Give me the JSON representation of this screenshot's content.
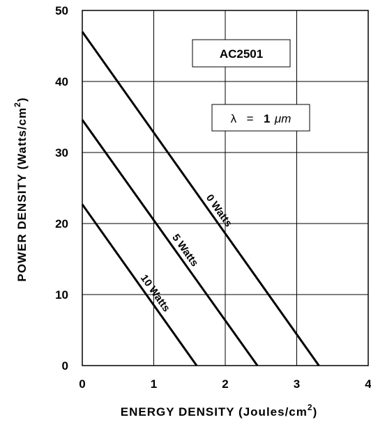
{
  "chart_data": {
    "type": "line",
    "title": "",
    "xlabel": "ENERGY DENSITY (Joules/cm",
    "xlabel_sup": "2",
    "xlabel_end": ")",
    "ylabel": "POWER DENSITY (Watts/cm",
    "ylabel_sup": "2",
    "ylabel_end": ")",
    "xlim": [
      0,
      4
    ],
    "ylim": [
      0,
      50
    ],
    "x_ticks": [
      "0",
      "1",
      "2",
      "3",
      "4"
    ],
    "y_ticks": [
      "0",
      "10",
      "20",
      "30",
      "40",
      "50"
    ],
    "grid": true,
    "series": [
      {
        "name": "0 Watts",
        "x": [
          0,
          3.31
        ],
        "y": [
          47,
          0
        ]
      },
      {
        "name": "5 Watts",
        "x": [
          0,
          2.45
        ],
        "y": [
          34.6,
          0
        ]
      },
      {
        "name": "10 Watts",
        "x": [
          0,
          1.6
        ],
        "y": [
          22.7,
          0
        ]
      }
    ],
    "annotations": {
      "model": "AC2501",
      "wavelength_symbol": "λ",
      "wavelength_eq": "=",
      "wavelength_value": "1",
      "wavelength_unit": "μm"
    }
  }
}
